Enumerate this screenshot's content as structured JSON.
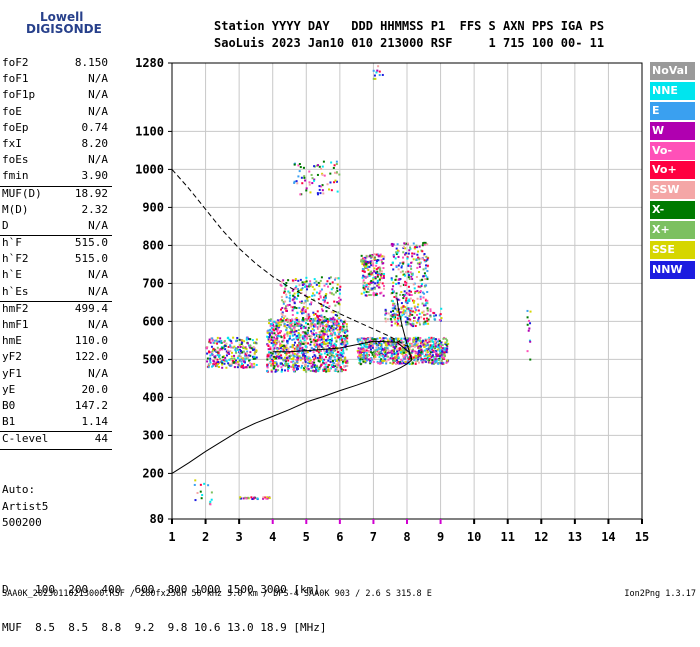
{
  "logo": {
    "line1": "Lowell",
    "line2": "DIGISONDE"
  },
  "header": {
    "line1": "Station YYYY DAY   DDD HHMMSS P1  FFS S AXN PPS IGA PS",
    "line2": "SaoLuis 2023 Jan10 010 213000 RSF     1 715 100 00- 11"
  },
  "params": [
    {
      "name": "foF2",
      "value": "8.150"
    },
    {
      "name": "foF1",
      "value": "N/A"
    },
    {
      "name": "foF1p",
      "value": "N/A"
    },
    {
      "name": "foE",
      "value": "N/A"
    },
    {
      "name": "foEp",
      "value": "0.74"
    },
    {
      "name": "fxI",
      "value": "8.20"
    },
    {
      "name": "foEs",
      "value": "N/A"
    },
    {
      "name": "fmin",
      "value": "3.90"
    },
    {
      "name": "MUF(D)",
      "value": "18.92"
    },
    {
      "name": "M(D)",
      "value": "2.32"
    },
    {
      "name": "D",
      "value": "N/A"
    },
    {
      "name": "h`F",
      "value": "515.0"
    },
    {
      "name": "h`F2",
      "value": "515.0"
    },
    {
      "name": "h`E",
      "value": "N/A"
    },
    {
      "name": "h`Es",
      "value": "N/A"
    },
    {
      "name": "hmF2",
      "value": "499.4"
    },
    {
      "name": "hmF1",
      "value": "N/A"
    },
    {
      "name": "hmE",
      "value": "110.0"
    },
    {
      "name": "yF2",
      "value": "122.0"
    },
    {
      "name": "yF1",
      "value": "N/A"
    },
    {
      "name": "yE",
      "value": "20.0"
    },
    {
      "name": "B0",
      "value": "147.2"
    },
    {
      "name": "B1",
      "value": "1.14"
    },
    {
      "name": "C-level",
      "value": "44"
    }
  ],
  "extra": {
    "auto": "Auto:",
    "artist": "Artist5",
    "code": "500200"
  },
  "legend": [
    {
      "label": "NoVal",
      "color": "#9a9a9a"
    },
    {
      "label": "NNE",
      "color": "#00e5ee"
    },
    {
      "label": "E",
      "color": "#3aa0f0"
    },
    {
      "label": "W",
      "color": "#b000b0"
    },
    {
      "label": "Vo-",
      "color": "#ff50b8"
    },
    {
      "label": "Vo+",
      "color": "#ff0040"
    },
    {
      "label": "SSW",
      "color": "#f4a6a6"
    },
    {
      "label": "X-",
      "color": "#007a00"
    },
    {
      "label": "X+",
      "color": "#7cc060"
    },
    {
      "label": "SSE",
      "color": "#d6d600"
    },
    {
      "label": "NNW",
      "color": "#1c1ce0"
    }
  ],
  "muf_table": {
    "d_row": "D    100  200  400  600  800 1000 1500 3000 [km]",
    "muf_row": "MUF  8.5  8.5  8.8  9.2  9.8 10.6 13.0 18.9 [MHz]"
  },
  "footer": "SAA0K_20230110213000.RSF / 280fx256h 50 kHz 5.0 km / DPS-4 SAA0K 903 / 2.6 S 315.8 E",
  "version": "Ion2Png 1.3.17",
  "chart_data": {
    "type": "scatter",
    "title": "",
    "xlabel": "",
    "ylabel": "",
    "xlim": [
      1,
      15
    ],
    "ylim": [
      80,
      1280
    ],
    "x_ticks": [
      1,
      2,
      3,
      4,
      5,
      6,
      7,
      8,
      9,
      10,
      11,
      12,
      13,
      14,
      15
    ],
    "y_ticks": [
      80,
      200,
      300,
      400,
      500,
      600,
      700,
      800,
      900,
      1000,
      1100,
      1280
    ],
    "grid": true,
    "x_tick_color": "#d000d0",
    "x_tick_colored_range": [
      4,
      9
    ],
    "series": [
      {
        "style": "solid",
        "x": [
          1.0,
          1.5,
          2.0,
          2.5,
          3.0,
          3.5,
          4.0,
          4.5,
          5.0,
          5.5,
          6.0,
          6.5,
          7.0,
          7.5,
          7.8,
          8.0,
          8.15
        ],
        "y": [
          200,
          228,
          258,
          285,
          312,
          333,
          350,
          368,
          388,
          402,
          418,
          432,
          448,
          466,
          478,
          488,
          499
        ]
      },
      {
        "style": "solid",
        "x": [
          8.15,
          8.05,
          7.7,
          7.0,
          6.0,
          5.0,
          4.5,
          4.0
        ],
        "y": [
          499,
          520,
          545,
          548,
          530,
          523,
          520,
          520
        ]
      },
      {
        "style": "solid",
        "x": [
          8.15,
          8.0,
          7.85,
          7.75,
          7.7
        ],
        "y": [
          499,
          540,
          590,
          630,
          660
        ]
      },
      {
        "style": "dashed",
        "x": [
          1.0,
          1.5,
          2.0,
          2.5,
          3.0,
          3.5,
          4.0,
          4.5,
          5.0,
          5.5,
          6.0,
          6.5,
          7.0,
          7.5,
          7.8,
          8.0
        ],
        "y": [
          1000,
          950,
          895,
          840,
          792,
          752,
          718,
          690,
          666,
          642,
          620,
          600,
          580,
          560,
          545,
          535
        ]
      }
    ],
    "clusters": [
      {
        "x": [
          3.8,
          6.2
        ],
        "y": [
          470,
          610
        ],
        "n": 1100
      },
      {
        "x": [
          2.0,
          3.5
        ],
        "y": [
          480,
          560
        ],
        "n": 300
      },
      {
        "x": [
          6.5,
          9.2
        ],
        "y": [
          490,
          560
        ],
        "n": 700
      },
      {
        "x": [
          4.2,
          6.0
        ],
        "y": [
          600,
          720
        ],
        "n": 260
      },
      {
        "x": [
          6.6,
          7.3
        ],
        "y": [
          670,
          780
        ],
        "n": 200
      },
      {
        "x": [
          7.5,
          8.6
        ],
        "y": [
          590,
          810
        ],
        "n": 320
      },
      {
        "x": [
          7.3,
          9.0
        ],
        "y": [
          600,
          640
        ],
        "n": 80
      },
      {
        "x": [
          7.5,
          9.0
        ],
        "y": [
          500,
          560
        ],
        "n": 120
      },
      {
        "x": [
          4.6,
          6.0
        ],
        "y": [
          935,
          1025
        ],
        "n": 70
      },
      {
        "x": [
          3.0,
          3.9
        ],
        "y": [
          135,
          140
        ],
        "n": 30
      },
      {
        "x": [
          11.55,
          11.65
        ],
        "y": [
          500,
          650
        ],
        "n": 12
      },
      {
        "x": [
          6.95,
          7.3
        ],
        "y": [
          1240,
          1275
        ],
        "n": 10
      },
      {
        "x": [
          1.6,
          2.2
        ],
        "y": [
          120,
          190
        ],
        "n": 15
      }
    ]
  }
}
